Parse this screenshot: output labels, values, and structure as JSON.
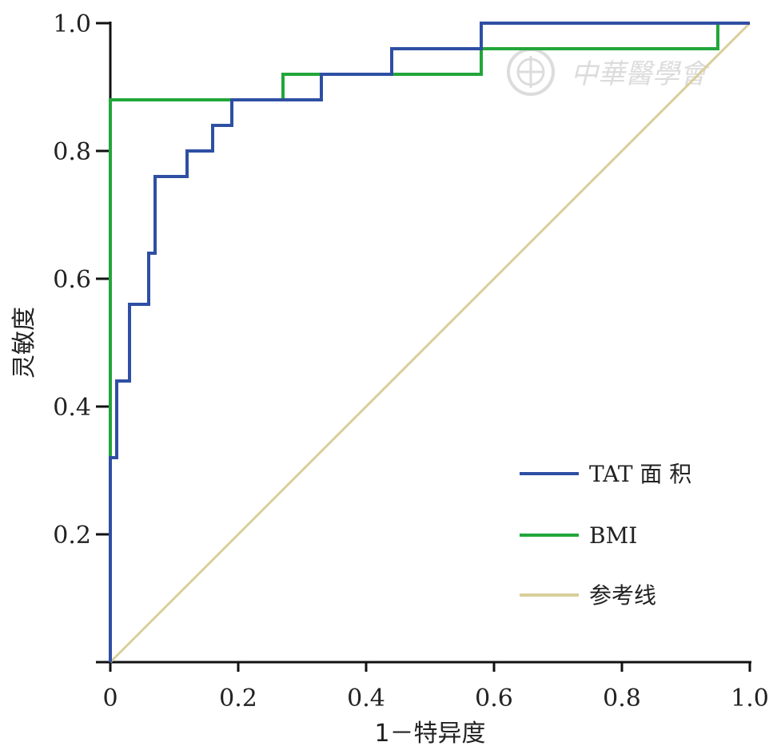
{
  "chart_data": {
    "type": "line",
    "xlabel": "1－特异度",
    "ylabel": "灵敏度",
    "xlim": [
      0,
      1.0
    ],
    "ylim": [
      0,
      1.0
    ],
    "xticks": [
      0,
      0.2,
      0.4,
      0.6,
      0.8,
      1.0
    ],
    "xtick_labels": [
      "0",
      "0.2",
      "0.4",
      "0.6",
      "0.8",
      "1.0"
    ],
    "yticks": [
      0.2,
      0.4,
      0.6,
      0.8,
      1.0
    ],
    "ytick_labels": [
      "0.2",
      "0.4",
      "0.6",
      "0.8",
      "1.0"
    ],
    "grid": false,
    "legend_position": "bottom-right",
    "series": [
      {
        "name": "TAT 面 积",
        "color": "#2e4fa3",
        "x": [
          0,
          0,
          0.01,
          0.01,
          0.03,
          0.03,
          0.04,
          0.04,
          0.06,
          0.06,
          0.07,
          0.07,
          0.12,
          0.12,
          0.16,
          0.16,
          0.19,
          0.19,
          0.33,
          0.33,
          0.44,
          0.44,
          0.58,
          0.58,
          1.0
        ],
        "y": [
          0,
          0.32,
          0.32,
          0.44,
          0.44,
          0.56,
          0.56,
          0.56,
          0.56,
          0.64,
          0.64,
          0.76,
          0.76,
          0.8,
          0.8,
          0.84,
          0.84,
          0.88,
          0.88,
          0.92,
          0.92,
          0.96,
          0.96,
          1.0,
          1.0
        ]
      },
      {
        "name": "BMI",
        "color": "#22a63a",
        "x": [
          0,
          0,
          0.27,
          0.27,
          0.58,
          0.58,
          0.95,
          0.95,
          1.0
        ],
        "y": [
          0,
          0.88,
          0.88,
          0.92,
          0.92,
          0.96,
          0.96,
          1.0,
          1.0
        ]
      },
      {
        "name": "参考线",
        "color": "#d9cf9b",
        "x": [
          0,
          1.0
        ],
        "y": [
          0,
          1.0
        ]
      }
    ]
  },
  "watermark": {
    "text": "中華醫學會",
    "emblem": "cma-emblem-icon"
  }
}
